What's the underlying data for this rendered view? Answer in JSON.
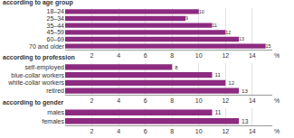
{
  "chart_data": [
    {
      "type": "bar",
      "orientation": "horizontal",
      "title": "according to age group",
      "categories": [
        "18–24",
        "25–34",
        "35–44",
        "45–59",
        "60–69",
        "70 and older"
      ],
      "values": [
        10,
        9,
        11,
        12,
        13,
        15
      ],
      "color": "#8c2b80",
      "xlim": [
        0,
        15.5
      ],
      "xticks": [
        2,
        4,
        6,
        8,
        10,
        12,
        14
      ],
      "xlabel": "%",
      "data_labels": true,
      "grid": true
    },
    {
      "type": "bar",
      "orientation": "horizontal",
      "title": "according to profession",
      "categories": [
        "self-employed",
        "blue-collar workers",
        "white-collar workers",
        "retired"
      ],
      "values": [
        8,
        11,
        12,
        13
      ],
      "color": "#8c2b80",
      "xlim": [
        0,
        15.5
      ],
      "xticks": [
        2,
        4,
        6,
        8,
        10,
        12,
        14
      ],
      "xlabel": "%",
      "data_labels": true,
      "grid": true
    },
    {
      "type": "bar",
      "orientation": "horizontal",
      "title": "according to gender",
      "categories": [
        "males",
        "females"
      ],
      "values": [
        11,
        13
      ],
      "color": "#8c2b80",
      "xlim": [
        0,
        15.5
      ],
      "xticks": [
        2,
        4,
        6,
        8,
        10,
        12,
        14
      ],
      "xlabel": "%",
      "data_labels": true,
      "grid": true
    }
  ]
}
